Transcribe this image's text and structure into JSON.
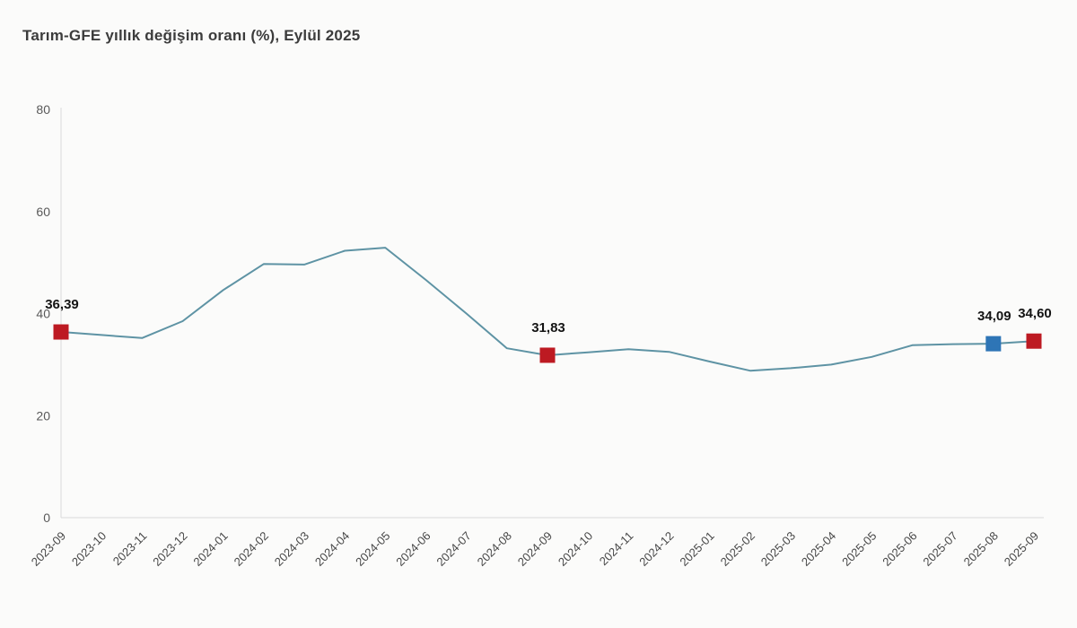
{
  "page": {
    "background": "#fbfbfa"
  },
  "header": {
    "title": "Tarım-GFE yıllık değişim oranı (%), Eylül 2025"
  },
  "chart_data": {
    "type": "line",
    "title": "Tarım-GFE yıllık değişim oranı (%), Eylül 2025",
    "x": [
      "2023-09",
      "2023-10",
      "2023-11",
      "2023-12",
      "2024-01",
      "2024-02",
      "2024-03",
      "2024-04",
      "2024-05",
      "2024-06",
      "2024-07",
      "2024-08",
      "2024-09",
      "2024-10",
      "2024-11",
      "2024-12",
      "2025-01",
      "2025-02",
      "2025-03",
      "2025-04",
      "2025-05",
      "2025-06",
      "2025-07",
      "2025-08",
      "2025-09"
    ],
    "values": [
      36.39,
      35.8,
      35.2,
      38.5,
      44.6,
      49.7,
      49.6,
      52.3,
      52.9,
      46.6,
      40.0,
      33.2,
      31.83,
      32.4,
      33.0,
      32.5,
      30.6,
      28.8,
      29.3,
      30.0,
      31.5,
      33.8,
      34.0,
      34.09,
      34.6
    ],
    "ylim": [
      0,
      80
    ],
    "yticks": [
      0,
      20,
      40,
      60,
      80
    ],
    "grid": false,
    "legend": "none",
    "xlabel": "",
    "ylabel": "",
    "line_color": "#5e93a4",
    "axis_color": "#d9d9d9",
    "ytick_label_color": "#595959",
    "xtick_label_color": "#474747",
    "data_label_color": "#141414",
    "annotated_points": [
      {
        "x": "2023-09",
        "value": 36.39,
        "label": "36,39",
        "marker_color": "#bd1a22"
      },
      {
        "x": "2024-09",
        "value": 31.83,
        "label": "31,83",
        "marker_color": "#bd1a22"
      },
      {
        "x": "2025-08",
        "value": 34.09,
        "label": "34,09",
        "marker_color": "#2e75b6"
      },
      {
        "x": "2025-09",
        "value": 34.6,
        "label": "34,60",
        "marker_color": "#bd1a22"
      }
    ]
  }
}
